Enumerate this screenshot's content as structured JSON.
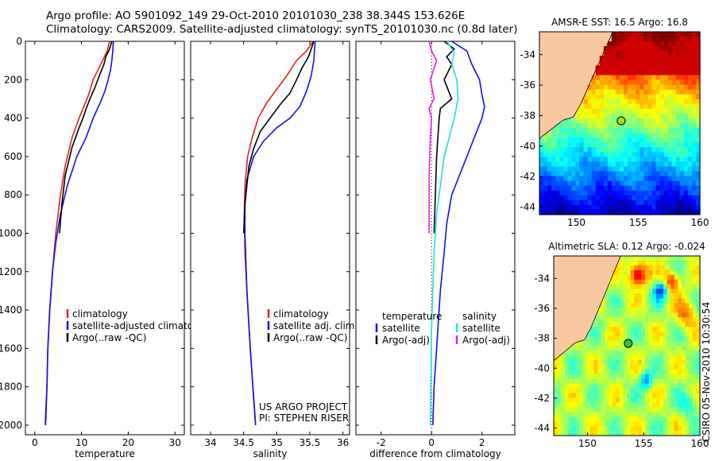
{
  "title": {
    "line1": "Argo profile: AO 5901092_149 29-Oct-2010 20101030_238 38.344S 153.626E",
    "line2": "Climatology: CARS2009. Satellite-adjusted climatology: synTS_20101030.nc (0.8d later)"
  },
  "colors": {
    "climatology": "#e02020",
    "satellite": "#1010e0",
    "argo": "#000000",
    "salinity_satellite": "#20e0e0",
    "salinity_argo_adj": "#e020e0",
    "land": "#f7c8a0"
  },
  "chart_data": [
    {
      "type": "line",
      "id": "temperature",
      "xlabel": "temperature",
      "ylabel": "",
      "xlim": [
        -2,
        32
      ],
      "ylim": [
        2050,
        0
      ],
      "xticks": [
        0,
        10,
        20,
        30
      ],
      "yticks": [
        0,
        200,
        400,
        600,
        800,
        1000,
        1200,
        1400,
        1600,
        1800,
        2000
      ],
      "legend": [
        "climatology",
        "satellite-adjusted climatology",
        "Argo(..raw -QC)"
      ],
      "series": [
        {
          "name": "climatology",
          "color": "#e02020",
          "x": [
            16.0,
            15.5,
            14.5,
            13.5,
            12.5,
            11.5,
            10.5,
            9.5,
            8.0,
            6.5,
            5.5,
            4.5,
            3.8,
            3.2,
            2.8,
            2.6,
            2.4,
            2.3,
            2.25
          ],
          "y": [
            0,
            50,
            100,
            150,
            200,
            280,
            340,
            400,
            500,
            650,
            800,
            1000,
            1200,
            1400,
            1600,
            1800,
            1900,
            1950,
            2000
          ]
        },
        {
          "name": "satellite-adjusted climatology",
          "color": "#1010e0",
          "x": [
            16.8,
            16.7,
            16.5,
            16.2,
            15.7,
            15.0,
            14.0,
            12.5,
            11.0,
            9.0,
            7.0,
            5.5,
            4.5,
            3.8,
            3.2,
            2.8,
            2.6,
            2.4,
            2.3
          ],
          "y": [
            0,
            50,
            100,
            150,
            200,
            260,
            320,
            400,
            500,
            600,
            750,
            900,
            1050,
            1200,
            1400,
            1600,
            1800,
            1950,
            2000
          ]
        },
        {
          "name": "Argo(..raw -QC)",
          "color": "#000000",
          "x": [
            16.5,
            16.0,
            15.2,
            14.8,
            13.8,
            12.9,
            11.8,
            11.0,
            10.3,
            9.5,
            8.0,
            6.5,
            5.8,
            5.3
          ],
          "y": [
            0,
            40,
            80,
            120,
            180,
            240,
            300,
            350,
            400,
            450,
            550,
            700,
            850,
            1000
          ]
        }
      ]
    },
    {
      "type": "line",
      "id": "salinity",
      "xlabel": "salinity",
      "ylabel": "",
      "xlim": [
        33.7,
        36.1
      ],
      "ylim": [
        2050,
        0
      ],
      "xticks": [
        34,
        34.5,
        35,
        35.5,
        36
      ],
      "legend": [
        "climatology",
        "satellite adj. clim.",
        "Argo(..raw -QC)"
      ],
      "annotation": [
        "US ARGO PROJECT",
        "PI: STEPHEN RISER"
      ],
      "series": [
        {
          "name": "climatology",
          "color": "#e02020",
          "x": [
            35.55,
            35.45,
            35.3,
            35.15,
            35.0,
            34.85,
            34.72,
            34.63,
            34.56,
            34.52,
            34.51,
            34.52,
            34.55,
            34.6,
            34.64,
            34.68
          ],
          "y": [
            0,
            50,
            100,
            180,
            250,
            320,
            400,
            500,
            600,
            750,
            900,
            1100,
            1300,
            1600,
            1800,
            2000
          ]
        },
        {
          "name": "satellite adj. clim.",
          "color": "#1010e0",
          "x": [
            35.58,
            35.57,
            35.56,
            35.52,
            35.45,
            35.35,
            35.2,
            35.0,
            34.8,
            34.65,
            34.55,
            34.52,
            34.52,
            34.55,
            34.6,
            34.64,
            34.68
          ],
          "y": [
            0,
            50,
            100,
            180,
            260,
            340,
            400,
            450,
            520,
            600,
            720,
            850,
            1000,
            1300,
            1600,
            1800,
            2000
          ]
        },
        {
          "name": "Argo(..raw -QC)",
          "color": "#000000",
          "x": [
            35.56,
            35.52,
            35.48,
            35.38,
            35.3,
            35.2,
            35.05,
            34.9,
            34.75,
            34.65,
            34.58,
            34.55,
            34.52,
            34.5
          ],
          "y": [
            0,
            40,
            80,
            140,
            200,
            270,
            330,
            400,
            470,
            560,
            650,
            750,
            850,
            1000
          ]
        }
      ]
    },
    {
      "type": "line",
      "id": "difference",
      "xlabel": "difference from climatology",
      "ylabel": "",
      "xlim": [
        -3,
        3.3
      ],
      "ylim": [
        2050,
        0
      ],
      "xticks": [
        -2,
        0,
        2
      ],
      "legend_temperature": {
        "header": "temperature",
        "items": [
          "satellite",
          "Argo(-adj)"
        ]
      },
      "legend_salinity": {
        "header": "salinity",
        "items": [
          "satellite",
          "Argo(-adj)"
        ]
      },
      "series": [
        {
          "name": "temperature satellite",
          "color": "#1010e0",
          "x": [
            0.8,
            1.4,
            1.6,
            1.9,
            2.0,
            2.1,
            2.0,
            1.7,
            1.4,
            1.1,
            0.8,
            0.6,
            0.5,
            0.35,
            0.2,
            0.1,
            0.05
          ],
          "y": [
            0,
            50,
            120,
            200,
            280,
            340,
            400,
            500,
            600,
            700,
            800,
            950,
            1100,
            1300,
            1600,
            1800,
            2000
          ]
        },
        {
          "name": "temperature Argo(-adj)",
          "color": "#000000",
          "x": [
            0.5,
            0.9,
            0.6,
            0.8,
            0.5,
            0.8,
            0.35,
            0.3,
            0.25,
            0.2,
            0.15,
            0.1
          ],
          "y": [
            0,
            40,
            80,
            120,
            200,
            300,
            350,
            400,
            500,
            600,
            800,
            1000
          ]
        },
        {
          "name": "salinity satellite",
          "color": "#20e0e0",
          "x": [
            0.6,
            0.9,
            0.8,
            1.0,
            1.05,
            0.9,
            0.7,
            0.5,
            0.4,
            0.3,
            0.2,
            0.1,
            0.0,
            -0.05
          ],
          "y": [
            0,
            60,
            120,
            200,
            300,
            400,
            500,
            600,
            700,
            800,
            900,
            1100,
            1500,
            2000
          ]
        },
        {
          "name": "salinity Argo(-adj)",
          "color": "#e020e0",
          "x": [
            -0.1,
            0.0,
            0.2,
            -0.05,
            0.1,
            -0.1,
            0.0,
            -0.05,
            -0.1,
            -0.1
          ],
          "y": [
            0,
            50,
            100,
            200,
            300,
            350,
            400,
            500,
            700,
            1000
          ]
        }
      ]
    },
    {
      "type": "heatmap",
      "id": "sst_map",
      "title": "AMSR-E SST: 16.5 Argo: 16.8",
      "xlim": [
        147,
        160
      ],
      "ylim": [
        -44.5,
        -32.5
      ],
      "xticks": [
        150,
        155,
        160
      ],
      "yticks": [
        -34,
        -36,
        -38,
        -40,
        -42,
        -44
      ],
      "marker": {
        "lon": 153.626,
        "lat": -38.344
      }
    },
    {
      "type": "heatmap",
      "id": "sla_map",
      "title": "Altimetric SLA: 0.12 Argo: -0.024",
      "xlim": [
        147,
        160
      ],
      "ylim": [
        -44.5,
        -32.5
      ],
      "xticks": [
        150,
        155,
        160
      ],
      "yticks": [
        -34,
        -36,
        -38,
        -40,
        -42,
        -44
      ],
      "marker": {
        "lon": 153.626,
        "lat": -38.344
      }
    }
  ],
  "side_label": "CSIRO 05-Nov-2010 10:30:54"
}
